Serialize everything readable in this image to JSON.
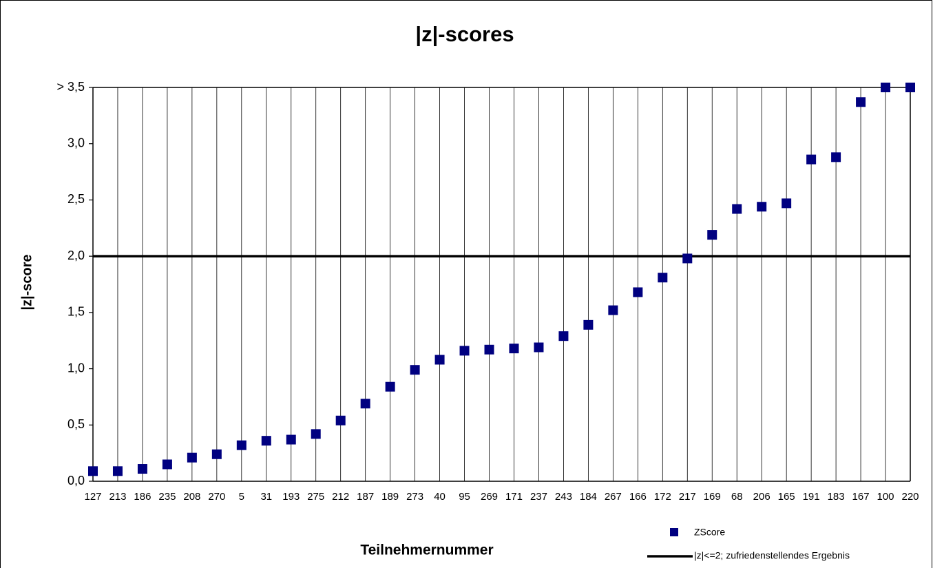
{
  "chart_data": {
    "type": "scatter",
    "title": "|z|-scores",
    "x_label": "Teilnehmernummer",
    "y_label": "|z|-score",
    "categories": [
      "127",
      "213",
      "186",
      "235",
      "208",
      "270",
      "5",
      "31",
      "193",
      "275",
      "212",
      "187",
      "189",
      "273",
      "40",
      "95",
      "269",
      "171",
      "237",
      "243",
      "184",
      "267",
      "166",
      "172",
      "217",
      "169",
      "68",
      "206",
      "165",
      "191",
      "183",
      "167",
      "100",
      "220"
    ],
    "series": [
      {
        "name": "ZScore",
        "color": "#000080",
        "values": [
          0.09,
          0.09,
          0.11,
          0.15,
          0.21,
          0.24,
          0.32,
          0.36,
          0.37,
          0.42,
          0.54,
          0.69,
          0.84,
          0.99,
          1.08,
          1.16,
          1.17,
          1.18,
          1.19,
          1.29,
          1.39,
          1.52,
          1.68,
          1.81,
          1.98,
          2.19,
          2.42,
          2.44,
          2.47,
          2.86,
          2.88,
          3.37,
          3.5,
          3.5
        ]
      }
    ],
    "threshold": {
      "name": "|z|<=2; zufriedenstellendes Ergebnis",
      "value": 2,
      "color": "#000000"
    },
    "ylim": [
      0,
      3.5
    ],
    "yticks": [
      {
        "value": 0,
        "label": "0,0"
      },
      {
        "value": 0.5,
        "label": "0,5"
      },
      {
        "value": 1,
        "label": "1,0"
      },
      {
        "value": 1.5,
        "label": "1,5"
      },
      {
        "value": 2,
        "label": "2,0"
      },
      {
        "value": 2.5,
        "label": "2,5"
      },
      {
        "value": 3,
        "label": "3,0"
      },
      {
        "value": 3.5,
        "label": "> 3,5"
      }
    ],
    "grid": "x"
  }
}
